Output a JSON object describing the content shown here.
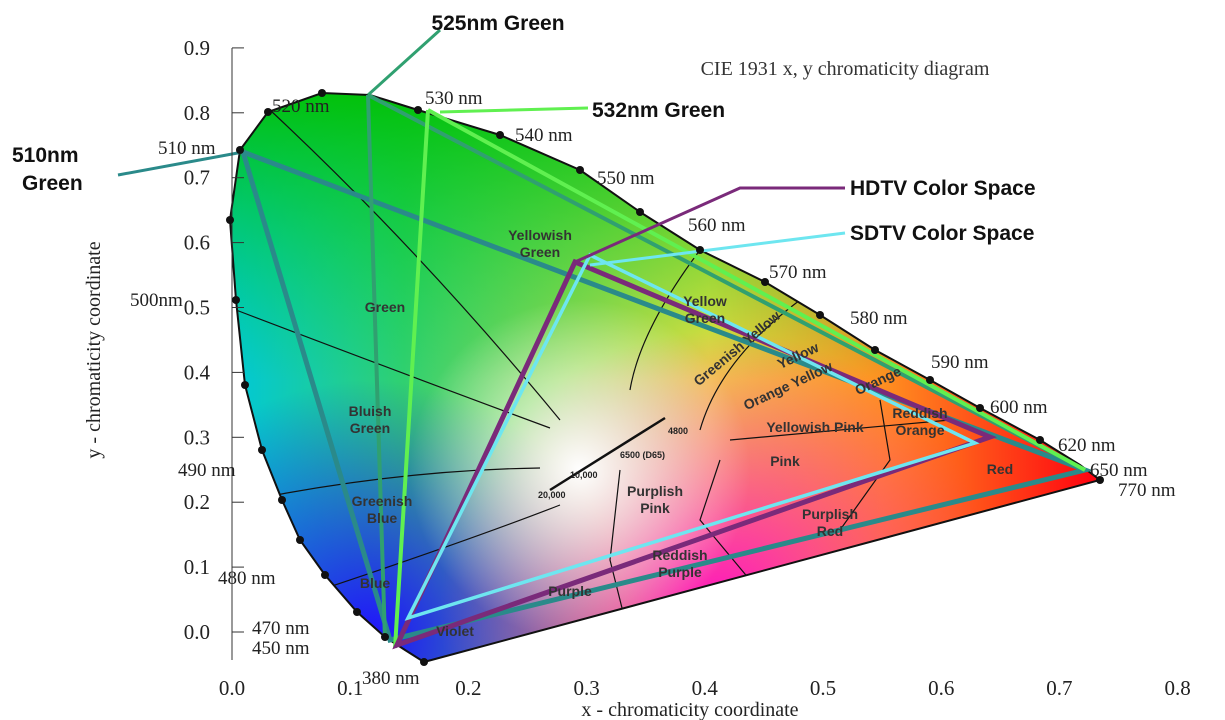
{
  "title": "CIE 1931 x, y chromaticity diagram",
  "axes": {
    "x_label": "x - chromaticity coordinate",
    "y_label": "y - chromaticity coordinate",
    "x_ticks": [
      "0.0",
      "0.1",
      "0.2",
      "0.3",
      "0.4",
      "0.5",
      "0.6",
      "0.7",
      "0.8"
    ],
    "y_ticks": [
      "0.0",
      "0.1",
      "0.2",
      "0.3",
      "0.4",
      "0.5",
      "0.6",
      "0.7",
      "0.8",
      "0.9"
    ]
  },
  "wavelengths": [
    "520 nm",
    "530 nm",
    "540 nm",
    "550 nm",
    "560 nm",
    "570 nm",
    "580 nm",
    "590 nm",
    "600 nm",
    "620 nm",
    "650 nm",
    "770 nm",
    "510 nm",
    "500nm",
    "490 nm",
    "480 nm",
    "470 nm",
    "450 nm",
    "380 nm"
  ],
  "regions": [
    [
      "Green"
    ],
    [
      "Bluish",
      "Green"
    ],
    [
      "Greenish",
      "Blue"
    ],
    [
      "Blue"
    ],
    [
      "Violet"
    ],
    [
      "Purple"
    ],
    [
      "Reddish",
      "Purple"
    ],
    [
      "Purplish",
      "Pink"
    ],
    [
      "Purplish",
      "Red"
    ],
    [
      "Pink"
    ],
    [
      "Yellowish Pink"
    ],
    [
      "Reddish",
      "Orange"
    ],
    [
      "Red"
    ],
    [
      "Orange"
    ],
    [
      "Orange Yellow"
    ],
    [
      "Yellow"
    ],
    [
      "Greenish Yellow"
    ],
    [
      "Yellow",
      "Green"
    ],
    [
      "Yellowish",
      "Green"
    ]
  ],
  "temperatures": [
    "4800",
    "6500 (D65)",
    "10,000",
    "20,000"
  ],
  "callouts": {
    "green_525": "525nm Green",
    "green_532": "532nm Green",
    "green_510": [
      "510nm",
      "Green"
    ],
    "hdtv": "HDTV Color Space",
    "sdtv": "SDTV Color Space"
  }
}
